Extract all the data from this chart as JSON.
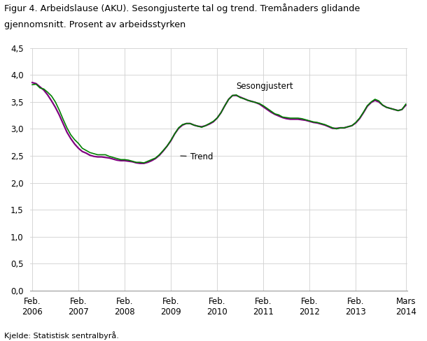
{
  "title_line1": "Figur 4. Arbeidslause (AKU). Sesongjusterte tal og trend. Tremånaders glidande",
  "title_line2": "gjennomsnitt. Prosent av arbeidsstyrken",
  "source": "Kjelde: Statistisk sentralbyrå.",
  "ylim": [
    0.0,
    4.5
  ],
  "yticks": [
    0.0,
    0.5,
    1.0,
    1.5,
    2.0,
    2.5,
    3.0,
    3.5,
    4.0,
    4.5
  ],
  "background_color": "#ffffff",
  "grid_color": "#d0d0d0",
  "sesongjustert_color": "#008000",
  "trend_color": "#800080",
  "sesongjustert_label": "Sesongjustert",
  "trend_label": "Trend",
  "x_tick_labels": [
    "Feb.\n2006",
    "Feb.\n2007",
    "Feb.\n2008",
    "Feb.\n2009",
    "Feb.\n2010",
    "Feb.\n2011",
    "Feb.\n2012",
    "Feb.\n2013",
    "Mars\n2014"
  ],
  "x_tick_positions": [
    0,
    12,
    24,
    36,
    48,
    60,
    72,
    84,
    97
  ],
  "n_points": 98,
  "sesongjustert": [
    3.82,
    3.83,
    3.76,
    3.74,
    3.68,
    3.61,
    3.5,
    3.35,
    3.18,
    3.02,
    2.89,
    2.8,
    2.73,
    2.64,
    2.6,
    2.56,
    2.54,
    2.52,
    2.52,
    2.52,
    2.49,
    2.47,
    2.45,
    2.43,
    2.43,
    2.42,
    2.4,
    2.38,
    2.38,
    2.37,
    2.4,
    2.43,
    2.46,
    2.52,
    2.6,
    2.68,
    2.79,
    2.91,
    3.02,
    3.08,
    3.1,
    3.1,
    3.07,
    3.05,
    3.03,
    3.06,
    3.1,
    3.14,
    3.2,
    3.3,
    3.43,
    3.55,
    3.62,
    3.63,
    3.58,
    3.56,
    3.53,
    3.51,
    3.49,
    3.47,
    3.43,
    3.38,
    3.33,
    3.28,
    3.26,
    3.22,
    3.21,
    3.2,
    3.2,
    3.2,
    3.19,
    3.17,
    3.15,
    3.13,
    3.12,
    3.1,
    3.08,
    3.05,
    3.02,
    3.0,
    3.02,
    3.02,
    3.04,
    3.06,
    3.12,
    3.2,
    3.31,
    3.43,
    3.5,
    3.55,
    3.52,
    3.44,
    3.4,
    3.38,
    3.36,
    3.34,
    3.36,
    3.46
  ],
  "trend": [
    3.86,
    3.84,
    3.78,
    3.72,
    3.63,
    3.52,
    3.4,
    3.26,
    3.1,
    2.94,
    2.82,
    2.72,
    2.64,
    2.58,
    2.55,
    2.51,
    2.49,
    2.48,
    2.48,
    2.47,
    2.46,
    2.44,
    2.42,
    2.41,
    2.41,
    2.4,
    2.39,
    2.37,
    2.36,
    2.36,
    2.38,
    2.41,
    2.45,
    2.51,
    2.59,
    2.68,
    2.78,
    2.91,
    3.01,
    3.07,
    3.1,
    3.1,
    3.07,
    3.05,
    3.04,
    3.06,
    3.09,
    3.13,
    3.2,
    3.3,
    3.43,
    3.55,
    3.62,
    3.62,
    3.59,
    3.56,
    3.53,
    3.51,
    3.49,
    3.46,
    3.41,
    3.36,
    3.31,
    3.27,
    3.24,
    3.21,
    3.19,
    3.18,
    3.18,
    3.18,
    3.17,
    3.16,
    3.14,
    3.12,
    3.11,
    3.09,
    3.07,
    3.04,
    3.01,
    3.01,
    3.02,
    3.02,
    3.04,
    3.06,
    3.11,
    3.19,
    3.3,
    3.42,
    3.49,
    3.53,
    3.5,
    3.44,
    3.4,
    3.38,
    3.36,
    3.34,
    3.36,
    3.44
  ]
}
